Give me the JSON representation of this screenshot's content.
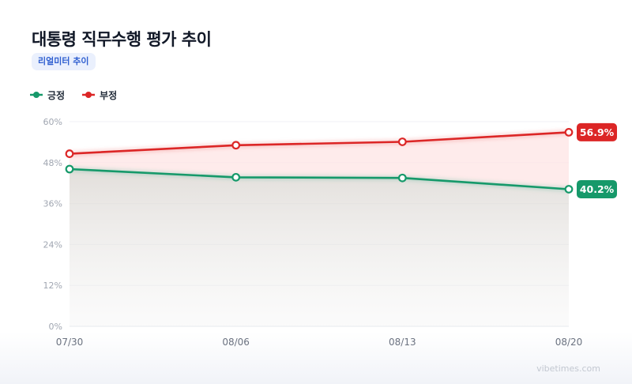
{
  "header": {
    "title": "대통령 직무수행 평가 추이",
    "badge": "리얼미터 추이"
  },
  "legend": {
    "items": [
      {
        "label": "긍정",
        "color": "#16996a"
      },
      {
        "label": "부정",
        "color": "#dc2626"
      }
    ]
  },
  "footer": {
    "source": "vibetimes.com"
  },
  "chart_data": {
    "type": "line",
    "categories": [
      "07/30",
      "08/06",
      "08/13",
      "08/20"
    ],
    "series": [
      {
        "name": "긍정",
        "values": [
          46.1,
          43.7,
          43.5,
          40.2
        ],
        "color": "#16996a"
      },
      {
        "name": "부정",
        "values": [
          50.6,
          53.1,
          54.1,
          56.9
        ],
        "color": "#dc2626"
      }
    ],
    "end_labels": [
      "40.2%",
      "56.9%"
    ],
    "y_ticks": [
      "0%",
      "12%",
      "24%",
      "36%",
      "48%",
      "60%"
    ],
    "ylim": [
      0,
      60
    ],
    "grid": true,
    "legend_position": "top-left",
    "title": "대통령 직무수행 평가 추이"
  }
}
